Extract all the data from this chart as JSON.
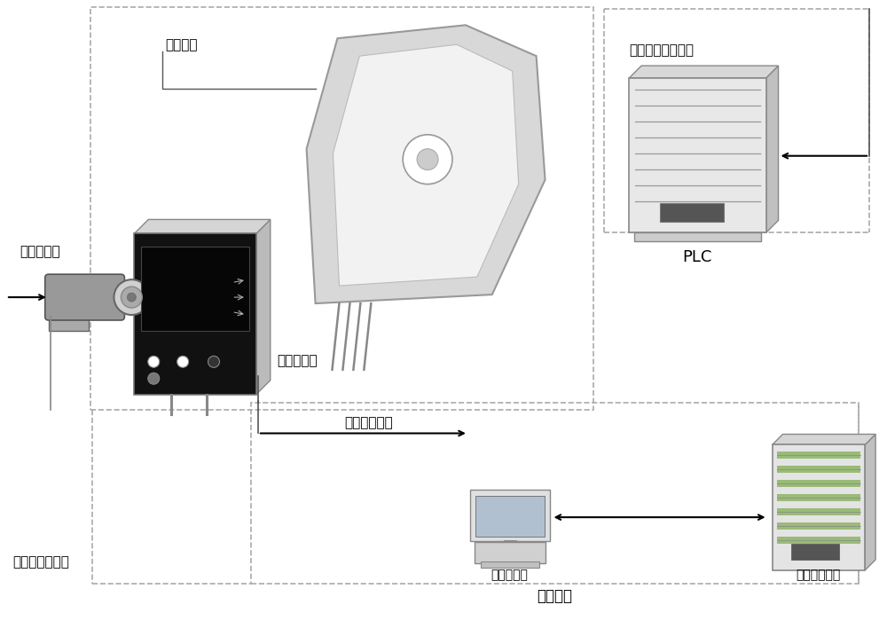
{
  "bg_color": "#ffffff",
  "labels": {
    "dangzai_huaban": "挡渣滑板",
    "hongwai": "红外热像仪",
    "luchian_xianshiqi": "炉前显示器",
    "shishi_wendu": "实时温度信号",
    "kongzhi_dangzai": "控制挡渣滑板信号",
    "PLC": "PLC",
    "gongkongjizhuji": "工控机主机",
    "xinhao_shuru": "信号输入输出",
    "jiance_xitong": "检测系统",
    "rejianyikongzhi": "热像仪控制信号"
  }
}
